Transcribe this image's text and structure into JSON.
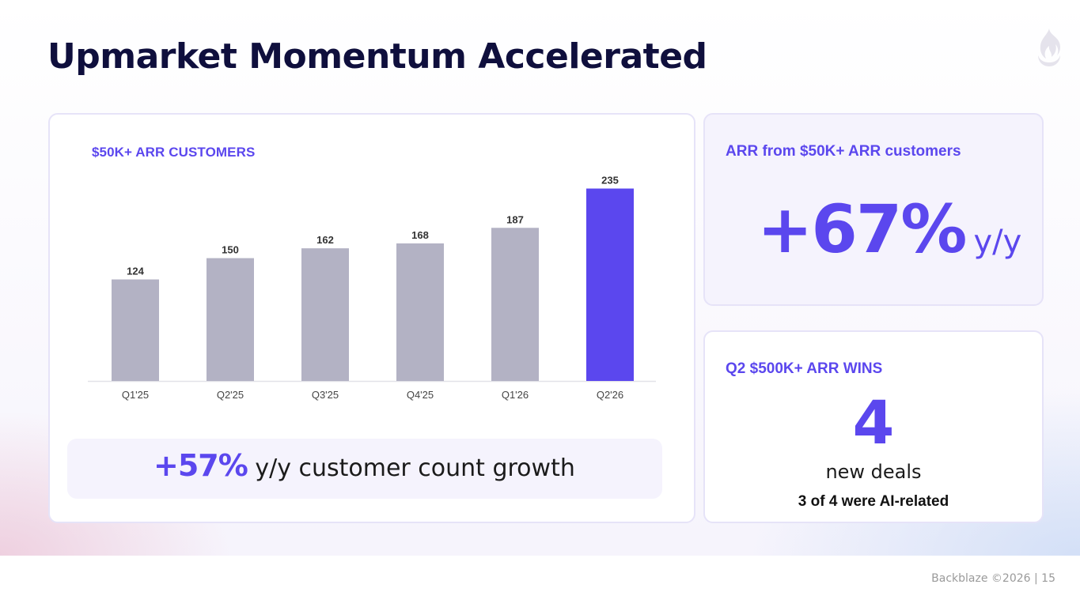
{
  "slide": {
    "title": "Upmarket Momentum Accelerated",
    "logo": "backblaze-flame-icon"
  },
  "chart_card": {
    "label": "$50K+ ARR CUSTOMERS",
    "growth_pct": "+57%",
    "growth_text": " y/y customer count growth"
  },
  "chart_data": {
    "type": "bar",
    "title": "$50K+ ARR CUSTOMERS",
    "categories": [
      "Q1'25",
      "Q2'25",
      "Q3'25",
      "Q4'25",
      "Q1'26",
      "Q2'26"
    ],
    "values": [
      124,
      150,
      162,
      168,
      187,
      235
    ],
    "highlight_index": 5,
    "ylim": [
      0,
      250
    ],
    "grid": false,
    "data_labels": true
  },
  "arr_card": {
    "label": "ARR from $50K+ ARR customers",
    "value": "+67%",
    "unit": "y/y"
  },
  "wins_card": {
    "label": "Q2 $500K+ ARR WINS",
    "value": "4",
    "sub": "new deals",
    "note": "3 of 4 were AI-related"
  },
  "footer": {
    "text": "Backblaze ©2026 |  15"
  },
  "colors": {
    "accent": "#5B47EE",
    "bar_default": "#B3B2C4",
    "title": "#0F0F3D"
  }
}
